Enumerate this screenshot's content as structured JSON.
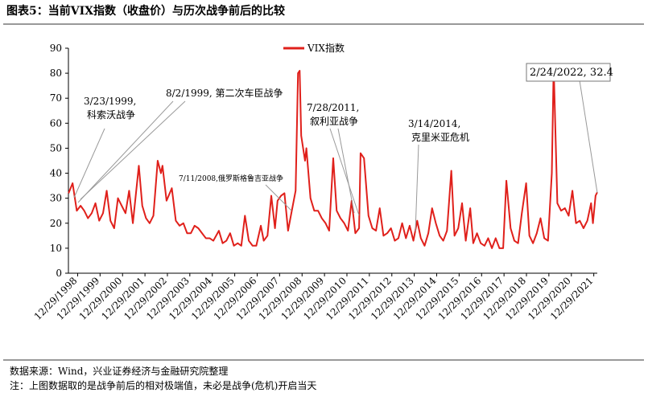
{
  "chart_data": {
    "type": "line",
    "title": "图表5：当前VIX指数（收盘价）与历次战争前后的比较",
    "source": "数据来源：Wind，兴业证券经济与金融研究院整理",
    "note": "注：上图数据取的是战争前后的相对极端值，未必是战争(危机)开启当天",
    "legend": "upper center",
    "ylim": [
      0,
      90
    ],
    "yticks": [
      0,
      10,
      20,
      30,
      40,
      50,
      60,
      70,
      80,
      90
    ],
    "xlim": [
      "1998-08-01",
      "2022-02-24"
    ],
    "xticks": [
      {
        "value": "1998-12-29",
        "label": "12/29/1998"
      },
      {
        "value": "1999-12-29",
        "label": "12/29/1999"
      },
      {
        "value": "2000-12-29",
        "label": "12/29/2000"
      },
      {
        "value": "2001-12-29",
        "label": "12/29/2001"
      },
      {
        "value": "2002-12-29",
        "label": "12/29/2002"
      },
      {
        "value": "2003-12-29",
        "label": "12/29/2003"
      },
      {
        "value": "2004-12-29",
        "label": "12/29/2004"
      },
      {
        "value": "2005-12-29",
        "label": "12/29/2005"
      },
      {
        "value": "2006-12-29",
        "label": "12/29/2006"
      },
      {
        "value": "2007-12-29",
        "label": "12/29/2007"
      },
      {
        "value": "2008-12-29",
        "label": "12/29/2008"
      },
      {
        "value": "2009-12-29",
        "label": "12/29/2009"
      },
      {
        "value": "2010-12-29",
        "label": "12/29/2010"
      },
      {
        "value": "2011-12-29",
        "label": "12/29/2011"
      },
      {
        "value": "2012-12-29",
        "label": "12/29/2012"
      },
      {
        "value": "2013-12-29",
        "label": "12/29/2013"
      },
      {
        "value": "2014-12-29",
        "label": "12/29/2014"
      },
      {
        "value": "2015-12-29",
        "label": "12/29/2015"
      },
      {
        "value": "2016-12-29",
        "label": "12/29/2016"
      },
      {
        "value": "2017-12-29",
        "label": "12/29/2017"
      },
      {
        "value": "2018-12-29",
        "label": "12/29/2018"
      },
      {
        "value": "2019-12-29",
        "label": "12/29/2019"
      },
      {
        "value": "2020-12-29",
        "label": "12/29/2020"
      },
      {
        "value": "2021-12-29",
        "label": "12/29/2021"
      }
    ],
    "annotations": [
      {
        "lines": [
          "3/23/1999,",
          "科索沃战争"
        ]
      },
      {
        "lines": [
          "8/2/1999, 第二次车臣战争"
        ]
      },
      {
        "lines": [
          "7/11/2008,俄罗斯格鲁吉亚战争"
        ]
      },
      {
        "lines": [
          "7/28/2011,",
          "叙利亚战争"
        ]
      },
      {
        "lines": [
          "3/14/2014,",
          "克里米亚危机"
        ]
      },
      {
        "lines": [
          "2/24/2022, 32.4"
        ]
      }
    ],
    "x": [
      "1998-08-03",
      "1998-10-08",
      "1998-12-15",
      "1999-02-15",
      "1999-04-15",
      "1999-06-15",
      "1999-08-15",
      "1999-10-15",
      "1999-12-15",
      "2000-02-15",
      "2000-04-15",
      "2000-06-15",
      "2000-08-15",
      "2000-10-15",
      "2000-12-15",
      "2001-02-15",
      "2001-04-15",
      "2001-06-15",
      "2001-09-20",
      "2001-11-15",
      "2002-01-15",
      "2002-03-15",
      "2002-05-15",
      "2002-07-24",
      "2002-09-15",
      "2002-10-10",
      "2002-12-15",
      "2003-03-11",
      "2003-05-15",
      "2003-07-15",
      "2003-09-15",
      "2003-11-15",
      "2004-01-15",
      "2004-03-15",
      "2004-05-15",
      "2004-07-15",
      "2004-09-15",
      "2004-11-15",
      "2005-01-15",
      "2005-04-15",
      "2005-06-15",
      "2005-08-15",
      "2005-10-15",
      "2005-12-15",
      "2006-02-15",
      "2006-04-15",
      "2006-06-13",
      "2006-08-15",
      "2006-10-15",
      "2006-12-15",
      "2007-02-27",
      "2007-04-15",
      "2007-06-15",
      "2007-08-16",
      "2007-10-15",
      "2007-11-26",
      "2008-01-22",
      "2008-03-17",
      "2008-05-15",
      "2008-07-15",
      "2008-09-15",
      "2008-10-24",
      "2008-11-20",
      "2008-12-15",
      "2009-02-15",
      "2009-03-09",
      "2009-05-15",
      "2009-07-15",
      "2009-09-15",
      "2009-11-15",
      "2010-01-15",
      "2010-03-15",
      "2010-05-20",
      "2010-07-15",
      "2010-09-15",
      "2010-11-15",
      "2011-01-15",
      "2011-03-16",
      "2011-05-15",
      "2011-07-15",
      "2011-08-08",
      "2011-10-03",
      "2011-12-15",
      "2012-02-15",
      "2012-04-15",
      "2012-06-15",
      "2012-08-15",
      "2012-10-15",
      "2012-12-15",
      "2013-02-15",
      "2013-04-15",
      "2013-06-15",
      "2013-08-15",
      "2013-10-15",
      "2013-12-15",
      "2014-02-15",
      "2014-04-15",
      "2014-06-15",
      "2014-08-15",
      "2014-10-15",
      "2014-12-15",
      "2015-02-15",
      "2015-04-15",
      "2015-06-15",
      "2015-08-24",
      "2015-10-15",
      "2015-12-15",
      "2016-02-15",
      "2016-04-15",
      "2016-06-27",
      "2016-08-15",
      "2016-10-15",
      "2016-12-15",
      "2017-02-15",
      "2017-04-15",
      "2017-06-15",
      "2017-08-15",
      "2017-10-15",
      "2017-12-15",
      "2018-02-05",
      "2018-04-15",
      "2018-06-15",
      "2018-08-15",
      "2018-10-15",
      "2018-12-24",
      "2019-02-15",
      "2019-04-15",
      "2019-06-15",
      "2019-08-15",
      "2019-10-15",
      "2019-12-15",
      "2020-02-15",
      "2020-03-16",
      "2020-05-15",
      "2020-07-15",
      "2020-09-15",
      "2020-11-15",
      "2021-01-15",
      "2021-03-15",
      "2021-05-15",
      "2021-07-15",
      "2021-09-15",
      "2021-11-15",
      "2021-12-15",
      "2022-01-27",
      "2022-02-24"
    ],
    "series": [
      {
        "name": "VIX指数",
        "color": "#e0201b",
        "values": [
          32,
          36,
          25,
          27,
          25,
          22,
          24,
          28,
          21,
          24,
          33,
          21,
          18,
          30,
          27,
          24,
          33,
          20,
          43,
          27,
          22,
          20,
          23,
          45,
          40,
          43,
          29,
          34,
          21,
          19,
          20,
          16,
          16,
          19,
          18,
          16,
          14,
          14,
          13,
          17,
          12,
          13,
          16,
          11,
          12,
          11,
          23,
          13,
          11,
          11,
          19,
          13,
          15,
          31,
          18,
          29,
          31,
          32,
          17,
          25,
          33,
          80,
          81,
          55,
          45,
          50,
          30,
          25,
          25,
          22,
          20,
          17,
          46,
          25,
          22,
          20,
          17,
          29,
          16,
          18,
          48,
          46,
          23,
          18,
          17,
          26,
          15,
          16,
          18,
          13,
          14,
          20,
          14,
          19,
          13,
          21,
          14,
          11,
          16,
          26,
          20,
          15,
          13,
          17,
          41,
          15,
          18,
          28,
          13,
          26,
          12,
          16,
          12,
          11,
          14,
          10,
          14,
          10,
          10,
          37,
          18,
          13,
          12,
          24,
          36,
          15,
          12,
          16,
          22,
          14,
          13,
          40,
          83,
          28,
          25,
          26,
          23,
          33,
          20,
          21,
          18,
          21,
          28,
          20,
          31,
          32.4
        ]
      }
    ]
  }
}
